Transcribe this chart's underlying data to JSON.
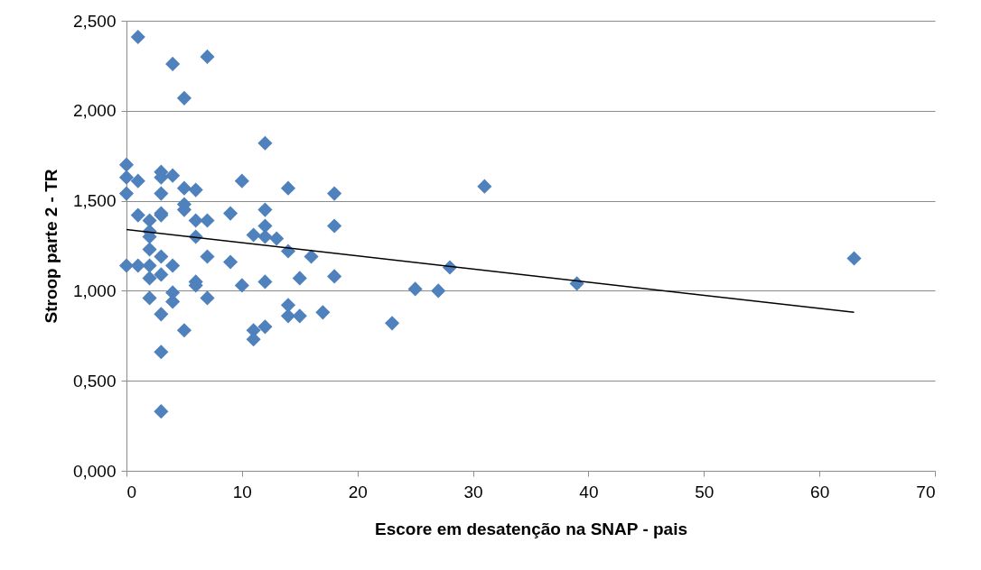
{
  "chart_data": {
    "type": "scatter",
    "xlabel": "Escore em desatenção na SNAP - pais",
    "ylabel": "Stroop parte 2 - TR",
    "xlim": [
      0,
      70
    ],
    "xticks": [
      0,
      10,
      20,
      30,
      40,
      50,
      60,
      70
    ],
    "ylim": [
      0,
      2.5
    ],
    "yticks": [
      {
        "value": 0,
        "label": "0,000"
      },
      {
        "value": 0.5,
        "label": "0,500"
      },
      {
        "value": 1,
        "label": "1,000"
      },
      {
        "value": 1.5,
        "label": "1,500"
      },
      {
        "value": 2,
        "label": "2,000"
      },
      {
        "value": 2.5,
        "label": "2,500"
      }
    ],
    "grid": "y",
    "marker": "diamond",
    "series": [
      {
        "color": "#4f81bd",
        "x": [
          1,
          4,
          7,
          5,
          12,
          0,
          0,
          1,
          0,
          3,
          3,
          4,
          3,
          5,
          6,
          10,
          14,
          18,
          31,
          1,
          2,
          3,
          3,
          5,
          5,
          6,
          7,
          9,
          12,
          12,
          18,
          2,
          2,
          6,
          11,
          12,
          13,
          2,
          3,
          7,
          14,
          16,
          9,
          0,
          1,
          2,
          4,
          3,
          2,
          6,
          6,
          15,
          18,
          28,
          12,
          10,
          39,
          63,
          25,
          27,
          4,
          2,
          7,
          4,
          14,
          3,
          14,
          15,
          17,
          23,
          12,
          5,
          11,
          11,
          3,
          3
        ],
        "values": [
          2.41,
          2.26,
          2.3,
          2.07,
          1.82,
          1.7,
          1.63,
          1.61,
          1.54,
          1.66,
          1.63,
          1.64,
          1.54,
          1.57,
          1.56,
          1.61,
          1.57,
          1.54,
          1.58,
          1.42,
          1.39,
          1.43,
          1.42,
          1.48,
          1.45,
          1.39,
          1.39,
          1.43,
          1.45,
          1.36,
          1.36,
          1.33,
          1.3,
          1.3,
          1.31,
          1.3,
          1.29,
          1.23,
          1.19,
          1.19,
          1.22,
          1.19,
          1.16,
          1.14,
          1.14,
          1.14,
          1.14,
          1.09,
          1.07,
          1.05,
          1.03,
          1.07,
          1.08,
          1.13,
          1.05,
          1.03,
          1.04,
          1.18,
          1.01,
          1.0,
          0.99,
          0.96,
          0.96,
          0.94,
          0.92,
          0.87,
          0.86,
          0.86,
          0.88,
          0.82,
          0.8,
          0.78,
          0.78,
          0.73,
          0.66,
          0.33
        ]
      },
      {
        "type": "line",
        "color": "#000000",
        "x": [
          0,
          63
        ],
        "values": [
          1.34,
          0.88
        ],
        "marker": "none",
        "line_style": "solid"
      }
    ]
  }
}
